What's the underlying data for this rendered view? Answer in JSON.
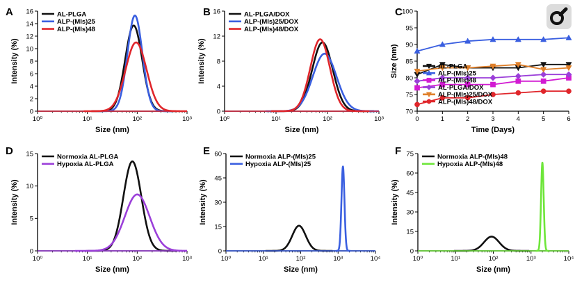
{
  "accent_colors": {
    "black": "#111111",
    "blue": "#3a5fe0",
    "red": "#e0262b",
    "purple": "#9b3fd9",
    "green": "#6ee63a",
    "orange": "#e0802a",
    "magenta": "#d21bd2"
  },
  "corner_icon": "magnifier-icon",
  "chart_data": [
    {
      "panel": "A",
      "type": "line",
      "xscale": "log",
      "xlabel": "Size (nm)",
      "ylabel": "Intensity (%)",
      "xlim": [
        1,
        1000
      ],
      "ylim": [
        0,
        16
      ],
      "xticks": [
        "10⁰",
        "10¹",
        "10²",
        "10³"
      ],
      "yticks": [
        "0",
        "2",
        "4",
        "6",
        "8",
        "10",
        "12",
        "14",
        "16"
      ],
      "legend": "top-left",
      "series": [
        {
          "name": "AL-PLGA",
          "color": "#111111",
          "peak": 13.7,
          "center": 85,
          "width": 0.17
        },
        {
          "name": "ALP-(MIs)25",
          "color": "#3a5fe0",
          "peak": 15.3,
          "center": 90,
          "width": 0.15
        },
        {
          "name": "ALP-(MIs)48",
          "color": "#e0262b",
          "peak": 11.0,
          "center": 95,
          "width": 0.21
        }
      ]
    },
    {
      "panel": "B",
      "type": "line",
      "xscale": "log",
      "xlabel": "Size (nm)",
      "ylabel": "Intensity (%)",
      "xlim": [
        1,
        1000
      ],
      "ylim": [
        0,
        16
      ],
      "xticks": [
        "10⁰",
        "10¹",
        "10²",
        "10³"
      ],
      "yticks": [
        "0",
        "4",
        "8",
        "12",
        "16"
      ],
      "legend": "top-left",
      "series": [
        {
          "name": "AL-PLGA/DOX",
          "color": "#111111",
          "peak": 11.0,
          "center": 80,
          "width": 0.2
        },
        {
          "name": "ALP-(MIs)25/DOX",
          "color": "#3a5fe0",
          "peak": 9.2,
          "center": 88,
          "width": 0.23
        },
        {
          "name": "ALP-(MIs)48/DOX",
          "color": "#e0262b",
          "peak": 11.5,
          "center": 72,
          "width": 0.19
        }
      ]
    },
    {
      "panel": "C",
      "type": "line",
      "xlabel": "Time (Days)",
      "ylabel": "Size (nm)",
      "xlim": [
        0,
        6
      ],
      "ylim": [
        70,
        100
      ],
      "xticks": [
        "0",
        "1",
        "2",
        "3",
        "4",
        "5",
        "6"
      ],
      "yticks": [
        "70",
        "75",
        "80",
        "85",
        "90",
        "95",
        "100"
      ],
      "legend": "bottom-left",
      "x": [
        0,
        1,
        2,
        3,
        4,
        5,
        6
      ],
      "series": [
        {
          "name": "AL-PLGA",
          "color": "#111111",
          "marker": "triangle-down",
          "values": [
            81,
            84,
            83,
            83,
            83,
            84,
            84
          ]
        },
        {
          "name": "ALP-(MIs)25",
          "color": "#3a5fe0",
          "marker": "triangle-up",
          "values": [
            88,
            90,
            91,
            91.5,
            91.5,
            91.5,
            92
          ]
        },
        {
          "name": "ALP-(MIs)48",
          "color": "#d21bd2",
          "marker": "square",
          "values": [
            77,
            78,
            78,
            78,
            79,
            79,
            80
          ]
        },
        {
          "name": "AL-PLGA/DOX",
          "color": "#9b3fd9",
          "marker": "diamond",
          "values": [
            79,
            80,
            80,
            80,
            80.5,
            81,
            81
          ]
        },
        {
          "name": "ALP-(MIs)25/DOX",
          "color": "#e0802a",
          "marker": "triangle-down",
          "values": [
            82,
            83,
            83,
            83.5,
            84,
            82.5,
            83
          ]
        },
        {
          "name": "ALP-(MIs)48/DOX",
          "color": "#e0262b",
          "marker": "circle",
          "values": [
            72,
            74,
            74,
            75,
            75.5,
            76,
            76
          ]
        }
      ]
    },
    {
      "panel": "D",
      "type": "line",
      "xscale": "log",
      "xlabel": "Size (nm)",
      "ylabel": "Intensity (%)",
      "xlim": [
        1,
        1000
      ],
      "ylim": [
        0,
        15
      ],
      "xticks": [
        "10⁰",
        "10¹",
        "10²",
        "10³"
      ],
      "yticks": [
        "0",
        "5",
        "10",
        "15"
      ],
      "legend": "top-left",
      "series": [
        {
          "name": "Normoxia  AL-PLGA",
          "color": "#111111",
          "peak": 13.8,
          "center": 80,
          "width": 0.18
        },
        {
          "name": "Hypoxia  AL-PLGA",
          "color": "#9b3fd9",
          "peak": 8.7,
          "center": 100,
          "width": 0.25
        }
      ]
    },
    {
      "panel": "E",
      "type": "line",
      "xscale": "log",
      "xlabel": "Size (nm)",
      "ylabel": "Intensity (%)",
      "xlim": [
        1,
        10000
      ],
      "ylim": [
        0,
        60
      ],
      "xticks": [
        "10⁰",
        "10¹",
        "10²",
        "10³",
        "10⁴"
      ],
      "yticks": [
        "0",
        "15",
        "30",
        "45",
        "60"
      ],
      "legend": "top-left",
      "series": [
        {
          "name": "Normoxia  ALP-(MIs)25",
          "color": "#111111",
          "peak": 15.5,
          "center": 90,
          "width": 0.18
        },
        {
          "name": "Hypoxia  ALP-(MIs)25",
          "color": "#3a5fe0",
          "peak": 52,
          "center": 1350,
          "width": 0.04
        }
      ]
    },
    {
      "panel": "F",
      "type": "line",
      "xscale": "log",
      "xlabel": "Size (nm)",
      "ylabel": "Intensity (%)",
      "xlim": [
        1,
        10000
      ],
      "ylim": [
        0,
        75
      ],
      "xticks": [
        "10⁰",
        "10¹",
        "10²",
        "10³",
        "10⁴"
      ],
      "yticks": [
        "0",
        "15",
        "30",
        "45",
        "60",
        "75"
      ],
      "legend": "top-left",
      "series": [
        {
          "name": "Normoxia  ALP-(MIs)48",
          "color": "#111111",
          "peak": 11,
          "center": 90,
          "width": 0.2
        },
        {
          "name": "Hypoxia  ALP-(MIs)48",
          "color": "#6ee63a",
          "peak": 68,
          "center": 2000,
          "width": 0.035
        }
      ]
    }
  ]
}
